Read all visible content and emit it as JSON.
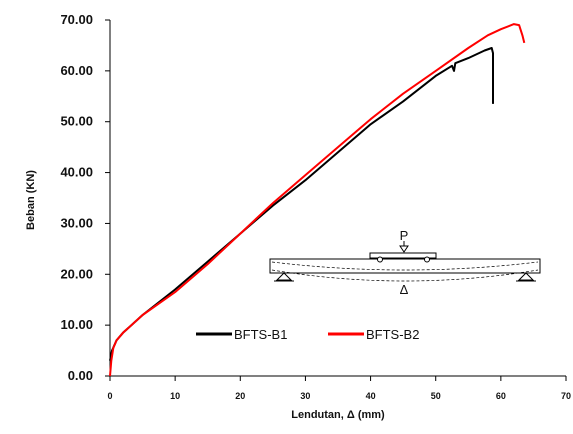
{
  "chart_data": {
    "type": "line",
    "title": "",
    "xlabel": "Lendutan, Δ (mm)",
    "ylabel": "Beban (KN)",
    "xlim": [
      0,
      70
    ],
    "ylim": [
      0,
      70
    ],
    "x_ticks": [
      "0",
      "10",
      "20",
      "30",
      "40",
      "50",
      "60",
      "70"
    ],
    "y_ticks": [
      "0.00",
      "10.00",
      "20.00",
      "30.00",
      "40.00",
      "50.00",
      "60.00",
      "70.00"
    ],
    "grid": false,
    "legend_position": "bottom-left",
    "series": [
      {
        "name": "BFTS-B1",
        "color": "#000000",
        "x": [
          0,
          0.3,
          1,
          2,
          5,
          10,
          15,
          20,
          25,
          30,
          35,
          40,
          45,
          50,
          52.5,
          52.8,
          53,
          55,
          57.5,
          58.6,
          58.8,
          58.8
        ],
        "y": [
          3,
          5,
          7,
          8.5,
          12,
          17,
          22.5,
          28,
          33.5,
          38.5,
          44,
          49.5,
          54,
          59,
          61,
          60,
          61.5,
          62.5,
          64,
          64.5,
          63.5,
          53.5
        ]
      },
      {
        "name": "BFTS-B2",
        "color": "#ff0000",
        "x": [
          0,
          0.2,
          0.5,
          1,
          2,
          5,
          10,
          15,
          20,
          25,
          30,
          35,
          40,
          45,
          50,
          55,
          58,
          60,
          62,
          62.8,
          63.3,
          63.6
        ],
        "y": [
          0,
          3,
          5.5,
          7,
          8.5,
          12,
          16.5,
          22,
          28,
          34,
          39.5,
          45,
          50.5,
          55.5,
          60,
          64.5,
          67,
          68.2,
          69.2,
          69,
          67,
          65.5
        ]
      }
    ]
  },
  "diagram": {
    "load_label": "P",
    "deflection_label": "Δ"
  }
}
